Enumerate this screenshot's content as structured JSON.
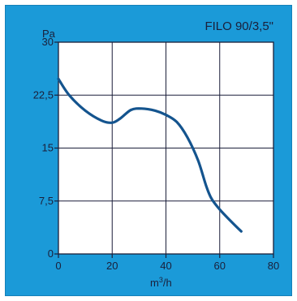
{
  "chart_data": {
    "type": "line",
    "title": "FILO 90/3,5\"",
    "xlabel": "m",
    "xlabel_sup": "3",
    "xlabel_suffix": "/h",
    "ylabel": "Pa",
    "xlim": [
      0,
      80
    ],
    "ylim": [
      0,
      30
    ],
    "x_ticks": [
      0,
      20,
      40,
      60,
      80
    ],
    "y_ticks": [
      0,
      7.5,
      15,
      22.5,
      30
    ],
    "x_tick_labels": [
      "0",
      "20",
      "40",
      "60",
      "80"
    ],
    "y_tick_labels": [
      "0",
      "7,5",
      "15",
      "22,5",
      "30"
    ],
    "grid": true,
    "colors": {
      "background": "#1b9ad8",
      "plot_area": "#ffffff",
      "grid": "#1b1f3a",
      "curve": "#14548e",
      "text": "#1b1f3a"
    },
    "series": [
      {
        "x": [
          0,
          4,
          10,
          16,
          20,
          23,
          27,
          31,
          36,
          40,
          44,
          48,
          52,
          55,
          57,
          60,
          64,
          68
        ],
        "y": [
          24.8,
          22.5,
          20.3,
          18.9,
          18.6,
          19.2,
          20.4,
          20.6,
          20.3,
          19.7,
          18.7,
          16.5,
          13.2,
          9.6,
          7.8,
          6.3,
          4.7,
          3.2
        ]
      }
    ]
  }
}
